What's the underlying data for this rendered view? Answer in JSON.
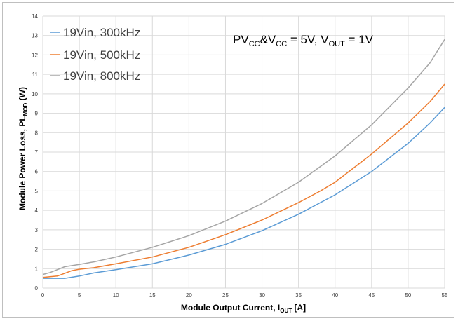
{
  "chart_data": {
    "type": "line",
    "title": "",
    "xlabel": {
      "main": "Module Output Current, I",
      "sub": "OUT",
      "tail": " [A]"
    },
    "ylabel": {
      "main": "Module Power Loss, PL",
      "sub": "MOD",
      "tail": " (W)"
    },
    "xlim": [
      0,
      55
    ],
    "ylim": [
      0,
      14
    ],
    "xticks": [
      0,
      5,
      10,
      15,
      20,
      25,
      30,
      35,
      40,
      45,
      50,
      55
    ],
    "yticks": [
      0,
      1,
      2,
      3,
      4,
      5,
      6,
      7,
      8,
      9,
      10,
      11,
      12,
      13,
      14
    ],
    "grid": true,
    "legend_position": "top-left",
    "annotation": {
      "pv": "PV",
      "cc1": "CC",
      "amp": "&V",
      "cc2": "CC",
      "mid": " = 5V, V",
      "out": "OUT",
      "end": " = 1V"
    },
    "series": [
      {
        "name": "19Vin, 300kHz",
        "color": "#5b9bd5",
        "x": [
          0,
          3,
          5,
          7,
          10,
          15,
          20,
          25,
          30,
          35,
          40,
          45,
          50,
          53,
          55
        ],
        "y": [
          0.5,
          0.5,
          0.62,
          0.78,
          0.95,
          1.25,
          1.7,
          2.25,
          2.95,
          3.8,
          4.8,
          6.0,
          7.45,
          8.5,
          9.3
        ]
      },
      {
        "name": "19Vin, 500kHz",
        "color": "#ed7d31",
        "x": [
          0,
          2,
          4,
          5,
          7,
          10,
          15,
          20,
          25,
          30,
          35,
          38,
          40,
          45,
          50,
          53,
          55
        ],
        "y": [
          0.55,
          0.62,
          0.9,
          0.97,
          1.05,
          1.25,
          1.6,
          2.1,
          2.75,
          3.5,
          4.4,
          5.0,
          5.45,
          6.9,
          8.5,
          9.6,
          10.5
        ]
      },
      {
        "name": "19Vin, 800kHz",
        "color": "#a5a5a5",
        "x": [
          0,
          1,
          3,
          5,
          7,
          10,
          15,
          20,
          25,
          30,
          35,
          40,
          45,
          50,
          53,
          55
        ],
        "y": [
          0.7,
          0.8,
          1.1,
          1.22,
          1.35,
          1.6,
          2.1,
          2.7,
          3.45,
          4.35,
          5.45,
          6.8,
          8.4,
          10.3,
          11.6,
          12.8
        ]
      }
    ]
  }
}
